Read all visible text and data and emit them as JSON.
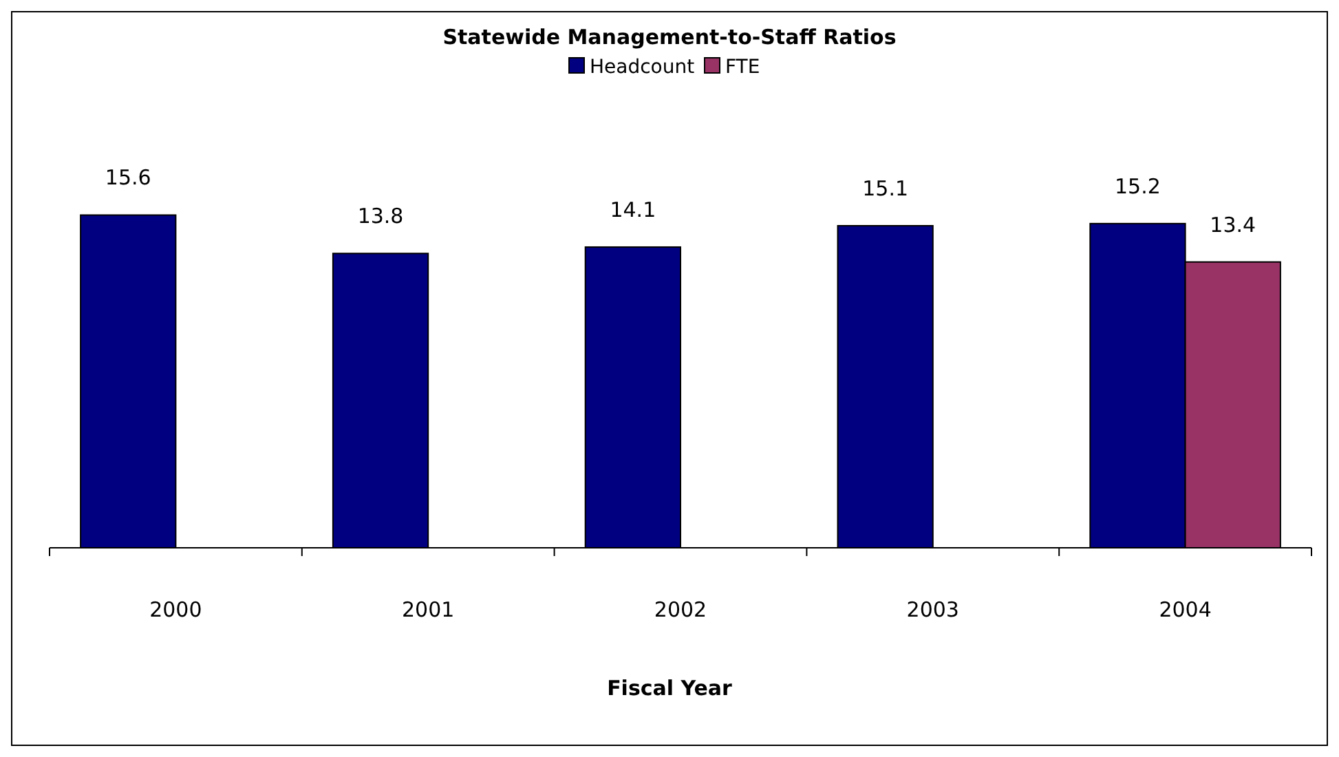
{
  "chart_data": {
    "type": "bar",
    "title": "Statewide Management-to-Staff Ratios",
    "xlabel": "Fiscal Year",
    "categories": [
      "2000",
      "2001",
      "2002",
      "2003",
      "2004"
    ],
    "series": [
      {
        "name": "Headcount",
        "color": "#000080",
        "values": [
          15.6,
          13.8,
          14.1,
          15.1,
          15.2
        ]
      },
      {
        "name": "FTE",
        "color": "#993366",
        "values": [
          null,
          null,
          null,
          null,
          13.4
        ]
      }
    ],
    "data_labels": true,
    "legend": "top"
  }
}
